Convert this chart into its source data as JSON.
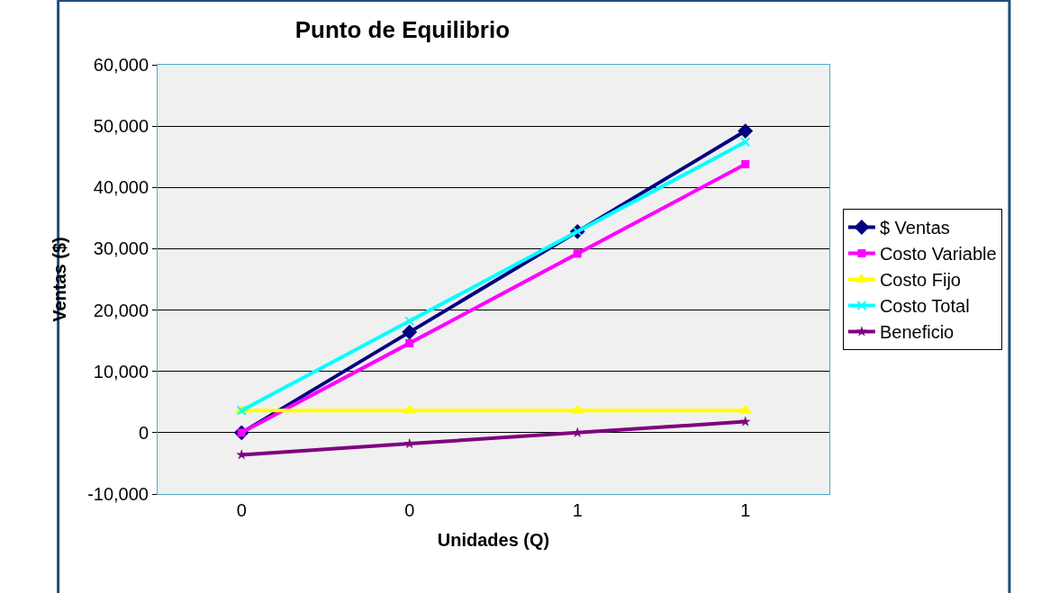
{
  "chart_data": {
    "type": "line",
    "title": "Punto de Equilibrio",
    "xlabel": "Unidades (Q)",
    "ylabel": "Ventas ($)",
    "categories": [
      "0",
      "0",
      "1",
      "1"
    ],
    "series": [
      {
        "name": "$ Ventas",
        "color": "#000080",
        "marker": "diamond",
        "values": [
          0,
          16400,
          32800,
          49200
        ]
      },
      {
        "name": "Costo Variable",
        "color": "#ff00ff",
        "marker": "square",
        "values": [
          0,
          14600,
          29200,
          43800
        ]
      },
      {
        "name": "Costo Fijo",
        "color": "#ffff00",
        "marker": "triangle",
        "values": [
          3600,
          3600,
          3600,
          3600
        ]
      },
      {
        "name": "Costo Total",
        "color": "#00ffff",
        "marker": "cross",
        "values": [
          3600,
          18200,
          32800,
          47400
        ]
      },
      {
        "name": "Beneficio",
        "color": "#800080",
        "marker": "star",
        "values": [
          -3600,
          -1800,
          0,
          1800
        ]
      }
    ],
    "ylim": [
      -10000,
      60000
    ],
    "yticks": [
      {
        "value": -10000,
        "label": "-10,000"
      },
      {
        "value": 0,
        "label": "0"
      },
      {
        "value": 10000,
        "label": "10,000"
      },
      {
        "value": 20000,
        "label": "20,000"
      },
      {
        "value": 30000,
        "label": "30,000"
      },
      {
        "value": 40000,
        "label": "40,000"
      },
      {
        "value": 50000,
        "label": "50,000"
      },
      {
        "value": 60000,
        "label": "60,000"
      }
    ],
    "grid": "y",
    "legend": "right",
    "line_style": "solid"
  }
}
